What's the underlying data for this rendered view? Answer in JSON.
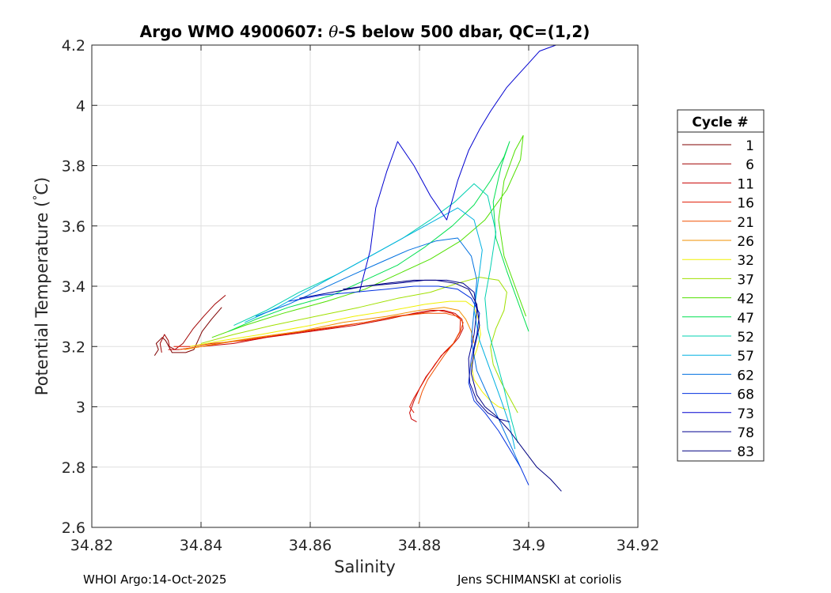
{
  "footer": {
    "left": "WHOI Argo:14-Oct-2025",
    "right": "Jens SCHIMANSKI at coriolis"
  },
  "chart_data": {
    "type": "line",
    "title": "Argo WMO 4900607: θ-S below 500 dbar,  QC=(1,2)",
    "title_parts": [
      "Argo WMO 4900607: ",
      "θ",
      "-S below 500 dbar,  QC=(1,2)"
    ],
    "xlabel": "Salinity",
    "ylabel_parts": [
      "Potential Temperature (",
      "°",
      "C)"
    ],
    "xlim": [
      34.82,
      34.92
    ],
    "ylim": [
      2.6,
      4.2
    ],
    "xticks": [
      "34.82",
      "34.84",
      "34.86",
      "34.88",
      "34.9",
      "34.92"
    ],
    "xtick_values": [
      34.82,
      34.84,
      34.86,
      34.88,
      34.9,
      34.92
    ],
    "yticks": [
      "2.6",
      "2.8",
      "3",
      "3.2",
      "3.4",
      "3.6",
      "3.8",
      "4",
      "4.2"
    ],
    "ytick_values": [
      2.6,
      2.8,
      3.0,
      3.2,
      3.4,
      3.6,
      3.8,
      4.0,
      4.2
    ],
    "grid": true,
    "legend_position": "right",
    "legend_title": "Cycle #",
    "series": [
      {
        "name": "1",
        "color": "#7f0000",
        "x": [
          34.8315,
          34.8322,
          34.8318,
          34.8329,
          34.8335,
          34.8338,
          34.8341,
          34.8344,
          34.8347,
          34.8353,
          34.8362,
          34.8372,
          34.8387,
          34.8402,
          34.8419,
          34.8438
        ],
        "y": [
          3.17,
          3.19,
          3.21,
          3.23,
          3.22,
          3.21,
          3.2,
          3.19,
          3.18,
          3.18,
          3.18,
          3.18,
          3.19,
          3.25,
          3.29,
          3.33
        ]
      },
      {
        "name": "6",
        "color": "#a00000",
        "x": [
          34.8328,
          34.8325,
          34.8333,
          34.834,
          34.8342,
          34.8352,
          34.8367,
          34.8386,
          34.8405,
          34.8425,
          34.8445
        ],
        "y": [
          3.18,
          3.21,
          3.24,
          3.22,
          3.2,
          3.19,
          3.21,
          3.26,
          3.3,
          3.34,
          3.37
        ]
      },
      {
        "name": "11",
        "color": "#c80000",
        "x": [
          34.834,
          34.836,
          34.84,
          34.846,
          34.852,
          34.86,
          34.868,
          34.874,
          34.879,
          34.882,
          34.8845,
          34.8865,
          34.8878,
          34.888,
          34.8872,
          34.8858,
          34.884,
          34.8825,
          34.8812,
          34.88,
          34.879,
          34.8782,
          34.8785,
          34.8795
        ],
        "y": [
          3.19,
          3.19,
          3.2,
          3.21,
          3.23,
          3.25,
          3.27,
          3.29,
          3.31,
          3.32,
          3.32,
          3.31,
          3.29,
          3.26,
          3.23,
          3.2,
          3.17,
          3.13,
          3.1,
          3.06,
          3.02,
          2.98,
          2.96,
          2.95
        ]
      },
      {
        "name": "16",
        "color": "#e01800",
        "x": [
          34.835,
          34.838,
          34.842,
          34.848,
          34.855,
          34.863,
          34.87,
          34.8755,
          34.88,
          34.8835,
          34.886,
          34.8875,
          34.8874,
          34.8862,
          34.8845,
          34.8828,
          34.8813,
          34.88,
          34.879,
          34.8782,
          34.879
        ],
        "y": [
          3.2,
          3.2,
          3.21,
          3.22,
          3.24,
          3.26,
          3.28,
          3.3,
          3.31,
          3.32,
          3.31,
          3.29,
          3.25,
          3.21,
          3.18,
          3.14,
          3.1,
          3.06,
          3.03,
          3.0,
          2.98
        ]
      },
      {
        "name": "21",
        "color": "#f05000",
        "x": [
          34.836,
          34.84,
          34.847,
          34.854,
          34.862,
          34.87,
          34.876,
          34.881,
          34.8848,
          34.887,
          34.888,
          34.8875,
          34.8862,
          34.8845,
          34.883,
          34.8815,
          34.8805,
          34.8798
        ],
        "y": [
          3.19,
          3.2,
          3.22,
          3.24,
          3.26,
          3.28,
          3.3,
          3.31,
          3.31,
          3.3,
          3.28,
          3.25,
          3.21,
          3.17,
          3.13,
          3.09,
          3.05,
          3.01
        ]
      },
      {
        "name": "26",
        "color": "#f09000",
        "x": [
          34.837,
          34.843,
          34.85,
          34.858,
          34.866,
          34.874,
          34.88,
          34.8845,
          34.8872,
          34.8885,
          34.8895,
          34.89
        ],
        "y": [
          3.19,
          3.21,
          3.23,
          3.25,
          3.28,
          3.3,
          3.32,
          3.33,
          3.32,
          3.29,
          3.25,
          3.21
        ]
      },
      {
        "name": "32",
        "color": "#f0f000",
        "x": [
          34.838,
          34.844,
          34.851,
          34.86,
          34.868,
          34.875,
          34.881,
          34.8855,
          34.8885,
          34.89,
          34.8908,
          34.8912,
          34.8905,
          34.8895,
          34.89,
          34.8915,
          34.893,
          34.8945,
          34.896
        ],
        "y": [
          3.2,
          3.22,
          3.24,
          3.27,
          3.3,
          3.32,
          3.34,
          3.35,
          3.35,
          3.33,
          3.29,
          3.24,
          3.19,
          3.14,
          3.09,
          3.05,
          3.02,
          3.0,
          2.99
        ]
      },
      {
        "name": "37",
        "color": "#a0e000",
        "x": [
          34.84,
          34.846,
          34.853,
          34.861,
          34.869,
          34.876,
          34.882,
          34.887,
          34.891,
          34.8945,
          34.896,
          34.8955,
          34.894,
          34.893,
          34.8935,
          34.895,
          34.8965,
          34.898
        ],
        "y": [
          3.21,
          3.24,
          3.27,
          3.3,
          3.33,
          3.36,
          3.38,
          3.41,
          3.43,
          3.42,
          3.38,
          3.32,
          3.26,
          3.2,
          3.14,
          3.08,
          3.03,
          2.98
        ]
      },
      {
        "name": "42",
        "color": "#50e000",
        "x": [
          34.842,
          34.848,
          34.855,
          34.863,
          34.87,
          34.876,
          34.882,
          34.8875,
          34.892,
          34.896,
          34.8985,
          34.899,
          34.8975,
          34.8955,
          34.8945,
          34.8955,
          34.8975,
          34.8995
        ],
        "y": [
          3.23,
          3.27,
          3.31,
          3.35,
          3.39,
          3.44,
          3.49,
          3.55,
          3.62,
          3.72,
          3.82,
          3.9,
          3.85,
          3.75,
          3.62,
          3.5,
          3.4,
          3.3
        ]
      },
      {
        "name": "47",
        "color": "#00e050",
        "x": [
          34.845,
          34.85,
          34.856,
          34.864,
          34.87,
          34.876,
          34.881,
          34.886,
          34.89,
          34.893,
          34.8955,
          34.8965,
          34.895,
          34.8935,
          34.894,
          34.896,
          34.898,
          34.9
        ],
        "y": [
          3.25,
          3.29,
          3.33,
          3.37,
          3.42,
          3.47,
          3.53,
          3.6,
          3.67,
          3.75,
          3.83,
          3.88,
          3.8,
          3.68,
          3.56,
          3.45,
          3.35,
          3.25
        ]
      },
      {
        "name": "52",
        "color": "#00d0b0",
        "x": [
          34.846,
          34.852,
          34.858,
          34.865,
          34.871,
          34.877,
          34.882,
          34.8865,
          34.89,
          34.8925,
          34.894,
          34.893,
          34.892,
          34.8925,
          34.894,
          34.8955,
          34.8968,
          34.898
        ],
        "y": [
          3.27,
          3.32,
          3.38,
          3.44,
          3.5,
          3.56,
          3.62,
          3.68,
          3.74,
          3.7,
          3.58,
          3.46,
          3.36,
          3.26,
          3.16,
          3.06,
          2.96,
          2.88
        ]
      },
      {
        "name": "57",
        "color": "#00b0e0",
        "x": [
          34.848,
          34.854,
          34.86,
          34.866,
          34.872,
          34.878,
          34.883,
          34.887,
          34.89,
          34.8915,
          34.8908,
          34.89,
          34.891,
          34.893,
          34.895,
          34.8965,
          34.8975
        ],
        "y": [
          3.28,
          3.33,
          3.39,
          3.45,
          3.51,
          3.57,
          3.62,
          3.66,
          3.62,
          3.52,
          3.42,
          3.32,
          3.22,
          3.12,
          3.02,
          2.94,
          2.86
        ]
      },
      {
        "name": "62",
        "color": "#0070e0",
        "x": [
          34.85,
          34.856,
          34.862,
          34.868,
          34.873,
          34.878,
          34.883,
          34.887,
          34.8895,
          34.8905,
          34.89,
          34.8895,
          34.8905,
          34.8925,
          34.8945,
          34.8965,
          34.8985
        ],
        "y": [
          3.3,
          3.34,
          3.39,
          3.44,
          3.48,
          3.52,
          3.55,
          3.56,
          3.5,
          3.42,
          3.32,
          3.22,
          3.12,
          3.04,
          2.96,
          2.88,
          2.8
        ]
      },
      {
        "name": "68",
        "color": "#0030e0",
        "x": [
          34.856,
          34.862,
          34.868,
          34.874,
          34.879,
          34.8835,
          34.887,
          34.8895,
          34.891,
          34.8905,
          34.8895,
          34.889,
          34.89,
          34.892,
          34.8945,
          34.8965,
          34.8985,
          34.9
        ],
        "y": [
          3.35,
          3.37,
          3.38,
          3.39,
          3.4,
          3.4,
          3.39,
          3.36,
          3.31,
          3.24,
          3.16,
          3.08,
          3.02,
          2.98,
          2.92,
          2.86,
          2.8,
          2.74
        ]
      },
      {
        "name": "73",
        "color": "#0000d0",
        "x": [
          34.869,
          34.871,
          34.872,
          34.874,
          34.876,
          34.879,
          34.882,
          34.885,
          34.887,
          34.889,
          34.891,
          34.893,
          34.8945,
          34.896,
          34.898,
          34.9,
          34.902,
          34.905
        ],
        "y": [
          3.38,
          3.52,
          3.66,
          3.78,
          3.88,
          3.8,
          3.7,
          3.62,
          3.75,
          3.85,
          3.92,
          3.98,
          4.02,
          4.06,
          4.1,
          4.14,
          4.18,
          4.2
        ]
      },
      {
        "name": "78",
        "color": "#000090",
        "x": [
          34.858,
          34.864,
          34.87,
          34.876,
          34.881,
          34.885,
          34.888,
          34.89,
          34.8905,
          34.89,
          34.889,
          34.8892,
          34.8905,
          34.8925,
          34.8945,
          34.8965
        ],
        "y": [
          3.36,
          3.38,
          3.4,
          3.41,
          3.42,
          3.42,
          3.41,
          3.38,
          3.32,
          3.24,
          3.16,
          3.08,
          3.02,
          2.98,
          2.96,
          2.95
        ]
      },
      {
        "name": "83",
        "color": "#000080",
        "x": [
          34.866,
          34.87,
          34.874,
          34.879,
          34.883,
          34.8865,
          34.889,
          34.8905,
          34.891,
          34.89,
          34.8895,
          34.8905,
          34.892,
          34.894,
          34.8965,
          34.899,
          34.9015,
          34.904,
          34.906
        ],
        "y": [
          3.39,
          3.4,
          3.41,
          3.42,
          3.42,
          3.41,
          3.39,
          3.34,
          3.27,
          3.19,
          3.11,
          3.04,
          3.0,
          2.97,
          2.92,
          2.86,
          2.8,
          2.76,
          2.72
        ]
      }
    ]
  }
}
